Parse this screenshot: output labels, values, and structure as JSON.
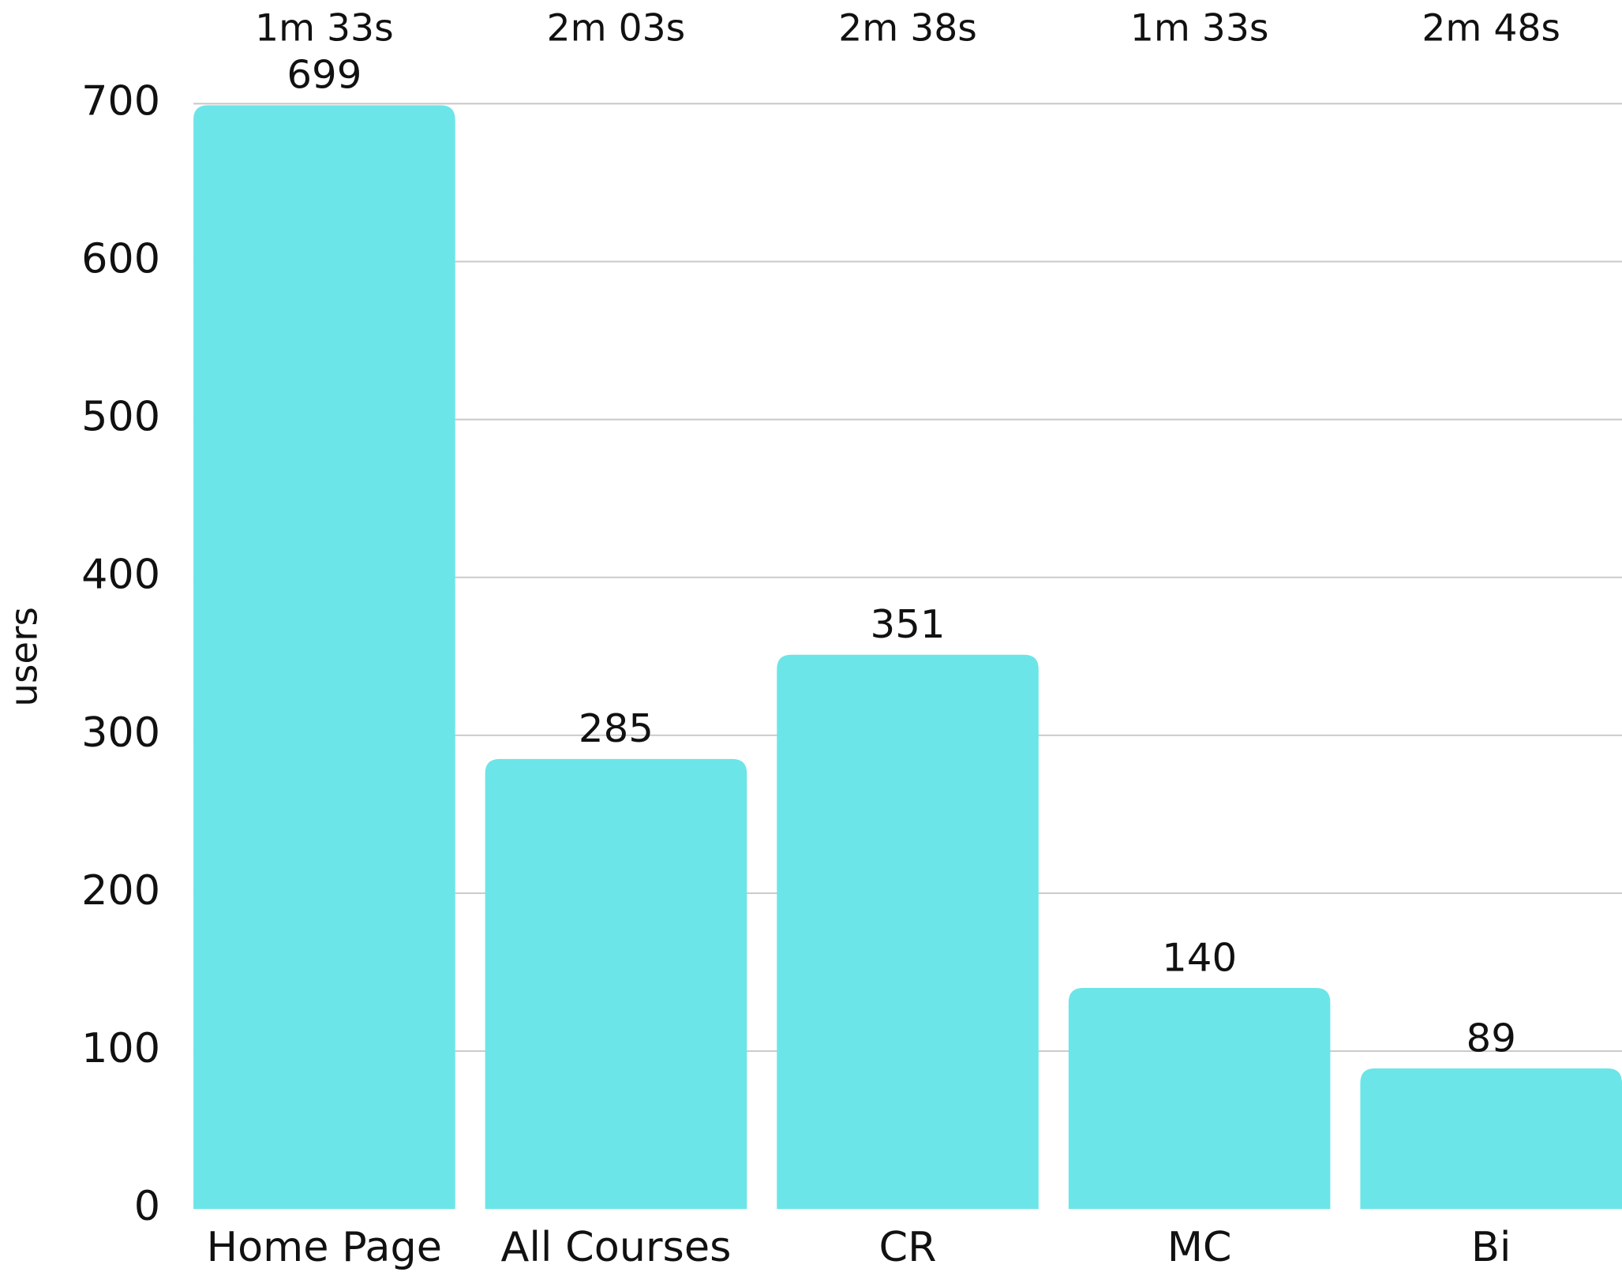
{
  "chart_data": {
    "type": "bar",
    "y_label": "users",
    "categories": [
      "Home Page",
      "All Courses",
      "CR",
      "MC",
      "Bi"
    ],
    "values": [
      699,
      285,
      351,
      140,
      89
    ],
    "annotations": [
      "1m 33s",
      "2m 03s",
      "2m 38s",
      "1m 33s",
      "2m 48s"
    ],
    "color": "#6ce5e8",
    "ylim": [
      0,
      700
    ],
    "yticks": [
      0,
      100,
      200,
      300,
      400,
      500,
      600,
      700
    ],
    "grid": true
  }
}
